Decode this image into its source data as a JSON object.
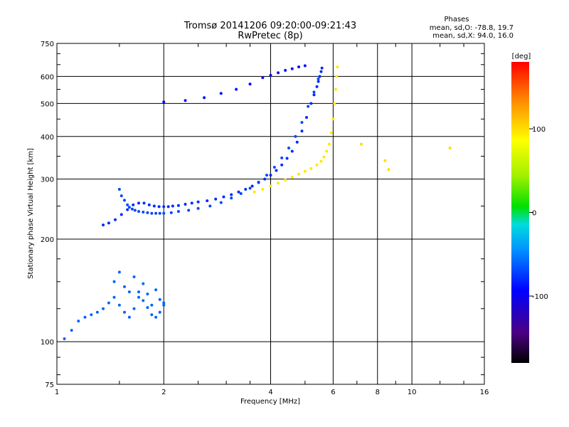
{
  "chart_data": {
    "type": "scatter",
    "title": "Tromsø 20141206 09:20:00-09:21:43",
    "subtitle": "RwPretec (8p)",
    "xlabel": "Frequency [MHz]",
    "ylabel": "Stationary phase Virtual Height [km]",
    "x_scale": "log",
    "y_scale": "log",
    "xlim": [
      1,
      16
    ],
    "ylim": [
      75,
      750
    ],
    "x_ticks": [
      1,
      2,
      4,
      6,
      8,
      10,
      16
    ],
    "x_tick_labels": [
      "1",
      "2",
      "4",
      "6",
      "8",
      "10",
      "16"
    ],
    "y_ticks": [
      75,
      100,
      200,
      300,
      400,
      500,
      600,
      750
    ],
    "y_tick_labels": [
      "75",
      "100",
      "200",
      "300",
      "400",
      "500",
      "600",
      "750"
    ],
    "grid": true,
    "info": {
      "heading": "Phases",
      "line1": "mean, sd,O: -78.8, 19.7",
      "line2": "mean, sd,X:  94.0, 16.0"
    },
    "colorbar": {
      "label": "[deg]",
      "range": [
        -180,
        180
      ],
      "ticks": [
        100,
        0,
        -100
      ],
      "tick_labels": [
        "100",
        "0",
        "-100"
      ]
    },
    "series": [
      {
        "color_phase": -80,
        "x": [
          1.35,
          1.4,
          1.46,
          1.52,
          1.58,
          1.64,
          1.7,
          1.76,
          1.82,
          1.88,
          1.94,
          2.0,
          2.06,
          2.12,
          2.2,
          2.3,
          2.4,
          2.5,
          2.65,
          2.8,
          2.95,
          3.1,
          3.25,
          3.4,
          3.55,
          3.7,
          3.85,
          4.0,
          4.15,
          4.3,
          4.45,
          4.6,
          4.75,
          4.9,
          5.05,
          5.2,
          5.3,
          5.4,
          5.45,
          5.5,
          5.55,
          5.58
        ],
        "y": [
          220,
          223,
          228,
          236,
          244,
          252,
          255,
          255,
          252,
          250,
          249,
          249,
          249,
          250,
          251,
          253,
          255,
          257,
          259,
          262,
          266,
          270,
          275,
          280,
          286,
          293,
          300,
          308,
          318,
          330,
          345,
          362,
          385,
          415,
          455,
          500,
          530,
          560,
          580,
          600,
          620,
          635
        ]
      },
      {
        "color_phase": -70,
        "x": [
          1.5,
          1.52,
          1.55,
          1.58,
          1.6,
          1.63,
          1.66,
          1.7,
          1.75,
          1.8,
          1.85,
          1.9,
          1.95,
          2.0,
          2.1,
          2.2,
          2.35,
          2.5,
          2.7,
          2.9,
          3.1,
          3.3,
          3.5,
          3.7,
          3.9,
          4.1,
          4.3,
          4.5,
          4.7,
          4.9,
          5.1,
          5.3,
          5.45
        ],
        "y": [
          280,
          268,
          260,
          252,
          248,
          245,
          243,
          241,
          240,
          239,
          238,
          238,
          238,
          238,
          239,
          241,
          243,
          246,
          250,
          256,
          264,
          272,
          282,
          294,
          308,
          325,
          346,
          370,
          400,
          440,
          490,
          540,
          590
        ]
      },
      {
        "color_phase": -90,
        "x": [
          2.0,
          2.3,
          2.6,
          2.9,
          3.2,
          3.5,
          3.8,
          4.0,
          4.2,
          4.4,
          4.6,
          4.8,
          5.0
        ],
        "y": [
          505,
          510,
          520,
          535,
          550,
          570,
          595,
          605,
          615,
          625,
          632,
          640,
          645
        ]
      },
      {
        "color_phase": 95,
        "x": [
          3.6,
          3.8,
          4.0,
          4.2,
          4.4,
          4.6,
          4.8,
          5.0,
          5.2,
          5.4,
          5.55,
          5.65,
          5.75,
          5.85,
          5.93,
          6.0,
          6.05,
          6.1,
          6.14,
          6.17
        ],
        "y": [
          275,
          280,
          286,
          292,
          298,
          304,
          310,
          316,
          322,
          330,
          338,
          348,
          362,
          380,
          410,
          450,
          500,
          550,
          600,
          640
        ]
      },
      {
        "color_phase": -60,
        "x": [
          1.05,
          1.1,
          1.15,
          1.2,
          1.25,
          1.3,
          1.35,
          1.4,
          1.45,
          1.5,
          1.55,
          1.6,
          1.65,
          1.7,
          1.75,
          1.8,
          1.85,
          1.9,
          1.95,
          2.0,
          1.45,
          1.5,
          1.55,
          1.6,
          1.65,
          1.7,
          1.75,
          1.8,
          1.85,
          1.9,
          1.95,
          2.0
        ],
        "y": [
          102,
          108,
          115,
          118,
          120,
          122,
          125,
          130,
          135,
          128,
          122,
          118,
          125,
          140,
          132,
          126,
          120,
          118,
          122,
          130,
          150,
          160,
          145,
          140,
          155,
          135,
          148,
          138,
          128,
          142,
          133,
          128
        ]
      },
      {
        "color_phase": 100,
        "x": [
          7.2,
          8.4,
          8.6,
          12.8
        ],
        "y": [
          380,
          340,
          320,
          370
        ]
      }
    ]
  }
}
